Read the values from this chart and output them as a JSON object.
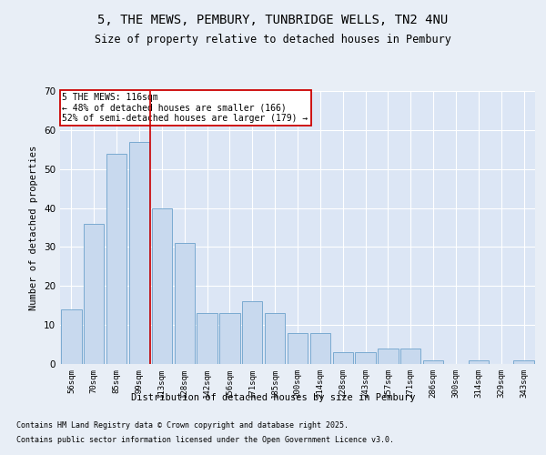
{
  "title_line1": "5, THE MEWS, PEMBURY, TUNBRIDGE WELLS, TN2 4NU",
  "title_line2": "Size of property relative to detached houses in Pembury",
  "xlabel": "Distribution of detached houses by size in Pembury",
  "ylabel": "Number of detached properties",
  "categories": [
    "56sqm",
    "70sqm",
    "85sqm",
    "99sqm",
    "113sqm",
    "128sqm",
    "142sqm",
    "156sqm",
    "171sqm",
    "185sqm",
    "200sqm",
    "214sqm",
    "228sqm",
    "243sqm",
    "257sqm",
    "271sqm",
    "286sqm",
    "300sqm",
    "314sqm",
    "329sqm",
    "343sqm"
  ],
  "values": [
    14,
    36,
    54,
    57,
    40,
    31,
    13,
    13,
    16,
    13,
    8,
    8,
    3,
    3,
    4,
    4,
    1,
    0,
    1,
    0,
    1
  ],
  "bar_color": "#c8d9ee",
  "bar_edge_color": "#7aaad0",
  "highlight_line_color": "#cc0000",
  "annotation_text": "5 THE MEWS: 116sqm\n← 48% of detached houses are smaller (166)\n52% of semi-detached houses are larger (179) →",
  "annotation_box_facecolor": "#ffffff",
  "annotation_box_edgecolor": "#cc0000",
  "ylim": [
    0,
    70
  ],
  "yticks": [
    0,
    10,
    20,
    30,
    40,
    50,
    60,
    70
  ],
  "footer_line1": "Contains HM Land Registry data © Crown copyright and database right 2025.",
  "footer_line2": "Contains public sector information licensed under the Open Government Licence v3.0.",
  "background_color": "#e8eef6",
  "plot_background_color": "#dce6f5",
  "grid_color": "#ffffff",
  "highlight_line_xindex": 3.5
}
